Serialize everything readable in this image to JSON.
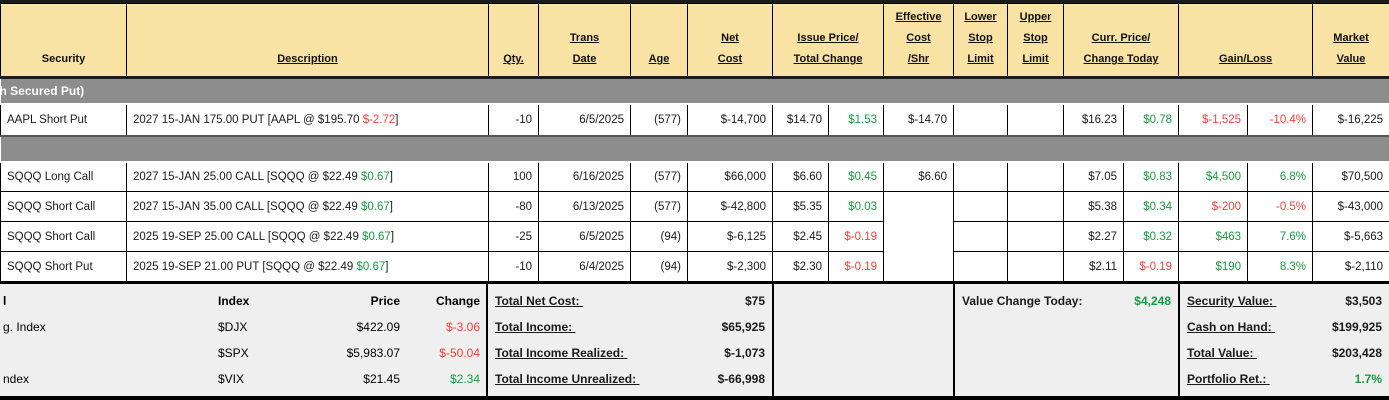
{
  "colors": {
    "positive_green": "#149c40",
    "negative_red": "#f2423a",
    "header_bg": "#f9e3a4",
    "section_band_bg": "#8d8d8d",
    "summary_bg": "#efefef"
  },
  "table": {
    "headers": [
      {
        "label": "Security",
        "underline": false,
        "span": 1
      },
      {
        "label": "Description",
        "underline": true,
        "span": 1
      },
      {
        "label": "Qty.",
        "underline": true,
        "span": 1
      },
      {
        "label": "Trans\nDate",
        "underline": true,
        "span": 1
      },
      {
        "label": "Age",
        "underline": true,
        "span": 1
      },
      {
        "label": "Net\nCost",
        "underline": true,
        "span": 1
      },
      {
        "label": "Issue Price/\nTotal Change",
        "underline": true,
        "span": 2
      },
      {
        "label": "Effective\nCost\n/Shr",
        "underline": true,
        "span": 1
      },
      {
        "label": "Lower\nStop\nLimit",
        "underline": true,
        "span": 1
      },
      {
        "label": "Upper\nStop\nLimit",
        "underline": true,
        "span": 1
      },
      {
        "label": "Curr. Price/\nChange Today",
        "underline": true,
        "span": 2
      },
      {
        "label": "Gain/Loss",
        "underline": true,
        "span": 2
      },
      {
        "label": "Market\nValue",
        "underline": true,
        "span": 1
      }
    ],
    "sections": [
      {
        "label": "h Secured Put)",
        "merge_effective_cost_below_first": false,
        "rows": [
          {
            "security": "AAPL Short Put",
            "description": [
              {
                "t": "2027 15-JAN 175.00 PUT [AAPL @ $195.70 "
              },
              {
                "t": "$-2.72",
                "c": "red"
              },
              {
                "t": "]"
              }
            ],
            "qty": "-10",
            "trans_date": "6/5/2025",
            "age": "(577)",
            "net_cost": "$-14,700",
            "issue_price": "$14.70",
            "total_change": {
              "t": "$1.53",
              "c": "green"
            },
            "effective_cost": "$-14.70",
            "lower_stop": "",
            "upper_stop": "",
            "curr_price": "$16.23",
            "change_today": {
              "t": "$0.78",
              "c": "green"
            },
            "gain_loss": {
              "t": "$-1,525",
              "c": "red"
            },
            "gain_pct": {
              "t": "-10.4%",
              "c": "red"
            },
            "market_value": "$-16,225"
          }
        ]
      },
      {
        "label": "",
        "merge_effective_cost_below_first": true,
        "rows": [
          {
            "security": "SQQQ Long Call",
            "description": [
              {
                "t": "2027 15-JAN 25.00 CALL [SQQQ @ $22.49 "
              },
              {
                "t": "$0.67",
                "c": "green"
              },
              {
                "t": "]"
              }
            ],
            "qty": "100",
            "trans_date": "6/16/2025",
            "age": "(577)",
            "net_cost": "$66,000",
            "issue_price": "$6.60",
            "total_change": {
              "t": "$0.45",
              "c": "green"
            },
            "effective_cost": "$6.60",
            "lower_stop": "",
            "upper_stop": "",
            "curr_price": "$7.05",
            "change_today": {
              "t": "$0.83",
              "c": "green"
            },
            "gain_loss": {
              "t": "$4,500",
              "c": "green"
            },
            "gain_pct": {
              "t": "6.8%",
              "c": "green"
            },
            "market_value": "$70,500"
          },
          {
            "security": "SQQQ Short Call",
            "description": [
              {
                "t": "2027 15-JAN 35.00 CALL [SQQQ @ $22.49 "
              },
              {
                "t": "$0.67",
                "c": "green"
              },
              {
                "t": "]"
              }
            ],
            "qty": "-80",
            "trans_date": "6/13/2025",
            "age": "(577)",
            "net_cost": "$-42,800",
            "issue_price": "$5.35",
            "total_change": {
              "t": "$0.03",
              "c": "green"
            },
            "effective_cost": "",
            "lower_stop": "",
            "upper_stop": "",
            "curr_price": "$5.38",
            "change_today": {
              "t": "$0.34",
              "c": "green"
            },
            "gain_loss": {
              "t": "$-200",
              "c": "red"
            },
            "gain_pct": {
              "t": "-0.5%",
              "c": "red"
            },
            "market_value": "$-43,000"
          },
          {
            "security": "SQQQ Short Call",
            "description": [
              {
                "t": "2025 19-SEP 25.00 CALL [SQQQ @ $22.49 "
              },
              {
                "t": "$0.67",
                "c": "green"
              },
              {
                "t": "]"
              }
            ],
            "qty": "-25",
            "trans_date": "6/5/2025",
            "age": "(94)",
            "net_cost": "$-6,125",
            "issue_price": "$2.45",
            "total_change": {
              "t": "$-0.19",
              "c": "red"
            },
            "lower_stop": "",
            "upper_stop": "",
            "curr_price": "$2.27",
            "change_today": {
              "t": "$0.32",
              "c": "green"
            },
            "gain_loss": {
              "t": "$463",
              "c": "green"
            },
            "gain_pct": {
              "t": "7.6%",
              "c": "green"
            },
            "market_value": "$-5,663"
          },
          {
            "security": "SQQQ Short Put",
            "description": [
              {
                "t": "2025 19-SEP 21.00 PUT [SQQQ @ $22.49 "
              },
              {
                "t": "$0.67",
                "c": "green"
              },
              {
                "t": "]"
              }
            ],
            "qty": "-10",
            "trans_date": "6/4/2025",
            "age": "(94)",
            "net_cost": "$-2,300",
            "issue_price": "$2.30",
            "total_change": {
              "t": "$-0.19",
              "c": "red"
            },
            "lower_stop": "",
            "upper_stop": "",
            "curr_price": "$2.11",
            "change_today": {
              "t": "$-0.19",
              "c": "red"
            },
            "gain_loss": {
              "t": "$190",
              "c": "green"
            },
            "gain_pct": {
              "t": "8.3%",
              "c": "green"
            },
            "market_value": "$-2,110"
          }
        ]
      }
    ]
  },
  "summary": {
    "market_indexes": {
      "header_fragment": "l",
      "col_headers": {
        "index": "Index",
        "price": "Price",
        "change": "Change"
      },
      "rows": [
        {
          "label": "g. Index",
          "index": "$DJX",
          "price": "$422.09",
          "change": {
            "t": "$-3.06",
            "c": "red"
          }
        },
        {
          "label": "",
          "index": "$SPX",
          "price": "$5,983.07",
          "change": {
            "t": "$-50.04",
            "c": "red"
          }
        },
        {
          "label": "ndex",
          "index": "$VIX",
          "price": "$21.45",
          "change": {
            "t": "$2.34",
            "c": "green"
          }
        }
      ]
    },
    "totals": [
      {
        "name": "total-net-cost",
        "label": "Total Net Cost: ",
        "value": "$75"
      },
      {
        "name": "total-income",
        "label": "Total Income: ",
        "value": "$65,925"
      },
      {
        "name": "total-income-realized",
        "label": "Total Income Realized: ",
        "value": "$-1,073"
      },
      {
        "name": "total-income-unrealized",
        "label": "Total Income Unrealized: ",
        "value": "$-66,998"
      }
    ],
    "value_change": {
      "label": "Value Change Today:",
      "value": {
        "t": "$4,248",
        "c": "green"
      }
    },
    "portfolio": [
      {
        "name": "security-value",
        "label": "Security Value: ",
        "value": "$3,503"
      },
      {
        "name": "cash-on-hand",
        "label": "Cash on Hand: ",
        "value": "$199,925"
      },
      {
        "name": "total-value",
        "label": "Total Value: ",
        "value": "$203,428"
      },
      {
        "name": "portfolio-return",
        "label": "Portfolio Ret.: ",
        "value": {
          "t": "1.7%",
          "c": "green"
        }
      }
    ]
  }
}
